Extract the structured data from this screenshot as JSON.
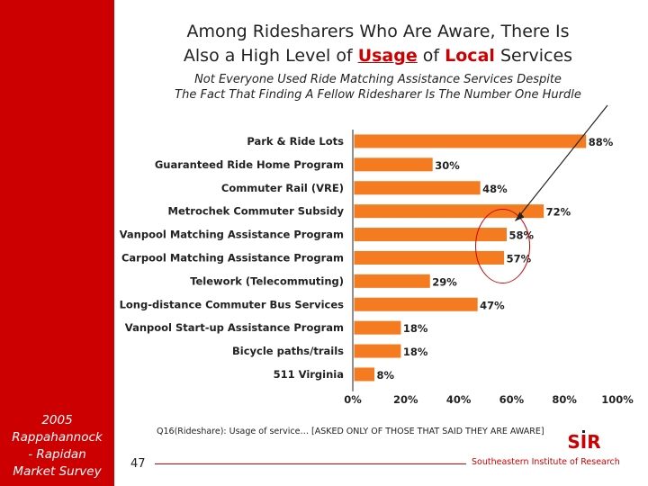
{
  "sidebar": {
    "caption_lines": [
      "2005",
      "Rappahannock",
      "- Rapidan",
      "Market Survey"
    ]
  },
  "header": {
    "title_line1": "Among Ridesharers Who Are Aware, There Is",
    "title_line2_prefix": "Also a High Level of ",
    "title_line2_highlight1": "Usage",
    "title_line2_middle": " of ",
    "title_line2_highlight2": "Local",
    "title_line2_suffix": " Services",
    "subtitle_line1": "Not Everyone Used Ride Matching Assistance Services Despite",
    "subtitle_line2": "The Fact That Finding A Fellow Ridesharer Is The Number One Hurdle"
  },
  "chart_data": {
    "type": "bar",
    "orientation": "horizontal",
    "categories": [
      "Park & Ride Lots",
      "Guaranteed Ride Home Program",
      "Commuter Rail (VRE)",
      "Metrochek Commuter Subsidy",
      "Vanpool Matching Assistance Program",
      "Carpool Matching Assistance Program",
      "Telework (Telecommuting)",
      "Long-distance Commuter Bus Services",
      "Vanpool Start-up Assistance Program",
      "Bicycle paths/trails",
      "511 Virginia"
    ],
    "values": [
      88,
      30,
      48,
      72,
      58,
      57,
      29,
      47,
      18,
      18,
      8
    ],
    "value_labels": [
      "88%",
      "30%",
      "48%",
      "72%",
      "58%",
      "57%",
      "29%",
      "47%",
      "18%",
      "18%",
      "8%"
    ],
    "xlim": [
      0,
      100
    ],
    "xticks": [
      "0%",
      "20%",
      "40%",
      "60%",
      "80%",
      "100%"
    ],
    "highlighted_categories": [
      "Vanpool Matching Assistance Program",
      "Carpool Matching Assistance Program"
    ],
    "bar_color": "#f47b20",
    "bar_edge_color": "#ffffff",
    "highlight_color": "#cc0000",
    "grid": false
  },
  "footer": {
    "footnote": "Q16(Rideshare): Usage of service… [ASKED ONLY OF THOSE THAT SAID THEY ARE AWARE]",
    "page_number": "47",
    "organization": "Southeastern Institute of Research",
    "logo_text": "SIR"
  },
  "colors": {
    "sidebar": "#cc0000",
    "accent": "#cc0000",
    "bar": "#f47b20"
  }
}
